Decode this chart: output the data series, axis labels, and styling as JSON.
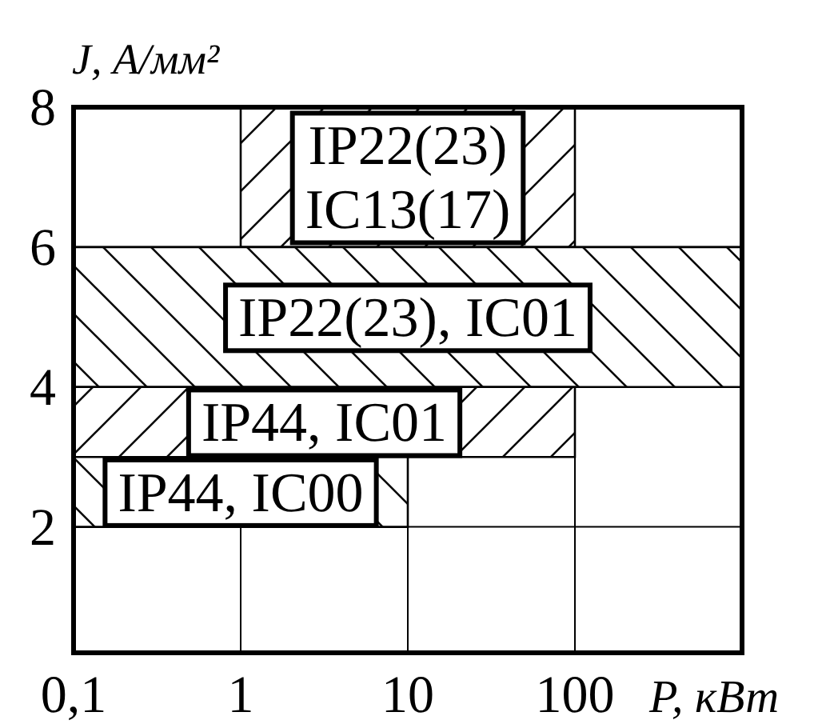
{
  "chart_data": {
    "type": "area",
    "xlabel": "P, кВт",
    "ylabel": "J, А/мм²",
    "log": "x",
    "xlim": [
      0.1,
      1000
    ],
    "ylim": [
      0.2,
      8
    ],
    "xticks": [
      {
        "value": 0.1,
        "label": "0,1"
      },
      1,
      10,
      100
    ],
    "yticks": [
      2,
      4,
      6,
      8
    ],
    "grid": true,
    "series": [
      {
        "name": "IP22(23)\nIC13(17)",
        "color": "#000000",
        "x": [
          1,
          100
        ],
        "values": [
          null,
          null
        ],
        "lower": [
          6,
          6
        ],
        "upper": [
          8,
          8
        ]
      },
      {
        "name": "IP22(23), IC01",
        "color": "#000000",
        "x": [
          0.1,
          1000
        ],
        "values": [
          null,
          null
        ],
        "lower": [
          4,
          4
        ],
        "upper": [
          6,
          6
        ]
      },
      {
        "name": "IP44, IC01",
        "color": "#000000",
        "x": [
          0.1,
          100
        ],
        "values": [
          null,
          null
        ],
        "lower": [
          3,
          3
        ],
        "upper": [
          4,
          4
        ]
      },
      {
        "name": "IP44, IC00",
        "color": "#000000",
        "x": [
          0.1,
          10
        ],
        "values": [
          null,
          null
        ],
        "lower": [
          2,
          2
        ],
        "upper": [
          3,
          3
        ]
      }
    ]
  }
}
